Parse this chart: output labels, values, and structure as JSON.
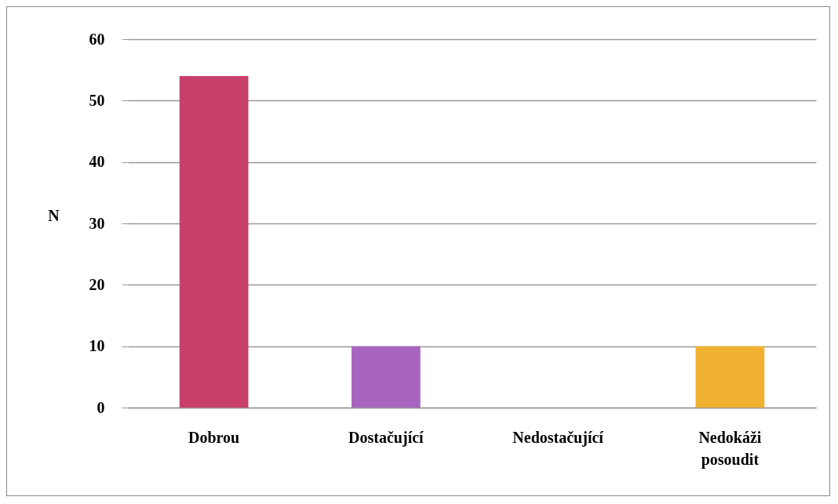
{
  "chart_data": {
    "type": "bar",
    "ylabel": "N",
    "categories": [
      "Dobrou",
      "Dostačující",
      "Nedostačující",
      "Nedokáži posoudit"
    ],
    "values": [
      54,
      10,
      0,
      10
    ],
    "colors": [
      "#c8406a",
      "#a865c0",
      "#8a8a8a",
      "#f0b030"
    ],
    "ylim": [
      0,
      60
    ],
    "yticks": [
      0,
      10,
      20,
      30,
      40,
      50,
      60
    ],
    "grid": "y"
  }
}
